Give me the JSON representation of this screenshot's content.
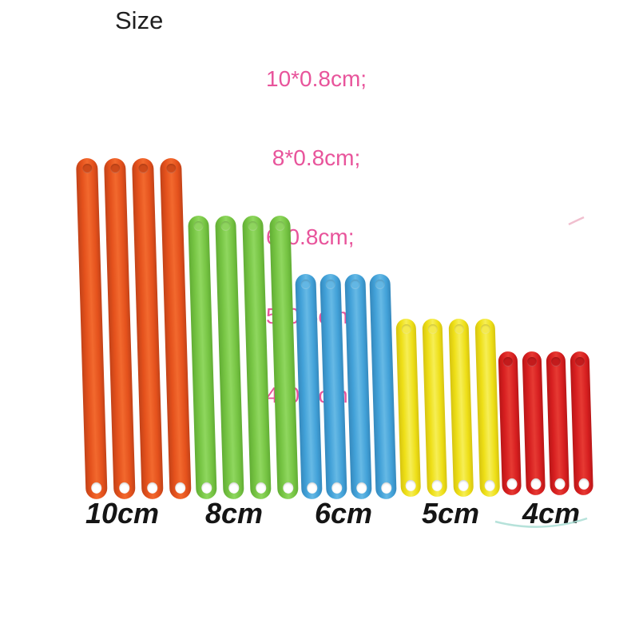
{
  "title": {
    "text": "Size"
  },
  "size_specs": {
    "lines": [
      "10*0.8cm;",
      " 8*0.8cm;",
      "6*0.8cm;",
      "5*0.8cm;",
      "4*0.8cm"
    ]
  },
  "groups": [
    {
      "label": "10cm",
      "count": 4,
      "colors": {
        "main": "#e4511c",
        "light": "#f2692e",
        "dark": "#c24218",
        "dimple": "#cf4a1a"
      }
    },
    {
      "label": "8cm",
      "count": 4,
      "colors": {
        "main": "#76c443",
        "light": "#8fd75f",
        "dark": "#61ad34",
        "dimple": "#8ed45e"
      }
    },
    {
      "label": "6cm",
      "count": 4,
      "colors": {
        "main": "#42a1d8",
        "light": "#66b9e5",
        "dark": "#3589bd",
        "dimple": "#63b7e4"
      }
    },
    {
      "label": "5cm",
      "count": 4,
      "colors": {
        "main": "#eedf17",
        "light": "#f6ee56",
        "dark": "#d6c410",
        "dimple": "#f4ea4e"
      }
    },
    {
      "label": "4cm",
      "count": 4,
      "colors": {
        "main": "#d71f20",
        "light": "#e63a33",
        "dark": "#b81617",
        "dimple": "#c31b1c"
      }
    }
  ],
  "css_vars": {
    "pink": "#e8549b",
    "labelcol": "#151515",
    "arc": "#a9ddd3",
    "artifact": "#e58aa8"
  }
}
